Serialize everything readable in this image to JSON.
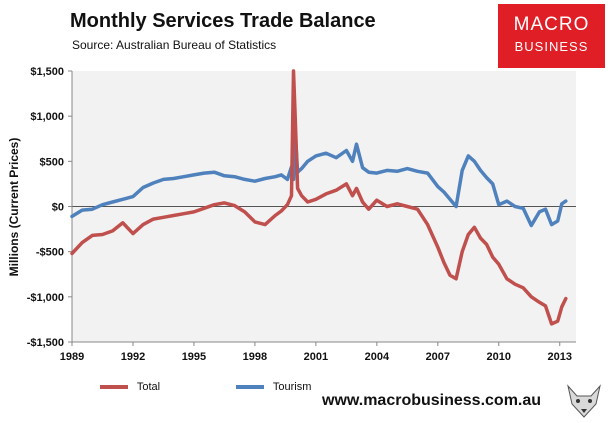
{
  "header": {
    "title": "Monthly Services Trade Balance",
    "subtitle": "Source: Australian Bureau of Statistics"
  },
  "logo": {
    "line1": "MACRO",
    "line2": "BUSINESS",
    "color": "#e01e26"
  },
  "footer": {
    "website": "www.macrobusiness.com.au"
  },
  "chart_data": {
    "type": "line",
    "xlabel": "",
    "ylabel": "Millions (Current Prices)",
    "xlim": [
      1989,
      2013.8
    ],
    "ylim": [
      -1500,
      1500
    ],
    "x_ticks": [
      1989,
      1992,
      1995,
      1998,
      2001,
      2004,
      2007,
      2010,
      2013
    ],
    "x_tick_labels": [
      "1989",
      "1992",
      "1995",
      "1998",
      "2001",
      "2004",
      "2007",
      "2010",
      "2013"
    ],
    "y_ticks": [
      -1500,
      -1000,
      -500,
      0,
      500,
      1000,
      1500
    ],
    "y_tick_labels": [
      "-$1,500",
      "-$1,000",
      "-$500",
      "$0",
      "$500",
      "$1,000",
      "$1,500"
    ],
    "grid": false,
    "legend_position": "bottom-left",
    "series": [
      {
        "name": "Total",
        "color": "#c0504d",
        "x": [
          1989.0,
          1989.5,
          1990.0,
          1990.5,
          1991.0,
          1991.5,
          1992.0,
          1992.5,
          1993.0,
          1993.5,
          1994.0,
          1994.5,
          1995.0,
          1995.5,
          1996.0,
          1996.5,
          1997.0,
          1997.5,
          1998.0,
          1998.5,
          1999.0,
          1999.3,
          1999.6,
          1999.8,
          1999.9,
          2000.0,
          2000.1,
          2000.3,
          2000.6,
          2001.0,
          2001.5,
          2002.0,
          2002.5,
          2002.8,
          2003.0,
          2003.3,
          2003.6,
          2004.0,
          2004.5,
          2005.0,
          2005.5,
          2006.0,
          2006.5,
          2007.0,
          2007.3,
          2007.6,
          2007.9,
          2008.2,
          2008.5,
          2008.8,
          2009.1,
          2009.4,
          2009.7,
          2010.0,
          2010.4,
          2010.8,
          2011.2,
          2011.6,
          2012.0,
          2012.3,
          2012.6,
          2012.9,
          2013.1,
          2013.3
        ],
        "y": [
          -520,
          -400,
          -320,
          -310,
          -270,
          -180,
          -300,
          -200,
          -140,
          -120,
          -100,
          -80,
          -60,
          -20,
          20,
          40,
          10,
          -60,
          -170,
          -200,
          -100,
          -50,
          20,
          120,
          1500,
          900,
          200,
          120,
          50,
          80,
          140,
          180,
          250,
          120,
          200,
          50,
          -30,
          70,
          0,
          30,
          0,
          -30,
          -200,
          -450,
          -620,
          -760,
          -800,
          -500,
          -310,
          -230,
          -350,
          -420,
          -560,
          -640,
          -800,
          -860,
          -900,
          -1000,
          -1060,
          -1100,
          -1300,
          -1270,
          -1110,
          -1020
        ]
      },
      {
        "name": "Tourism",
        "color": "#4f81bd",
        "x": [
          1989.0,
          1989.5,
          1990.0,
          1990.5,
          1991.0,
          1991.5,
          1992.0,
          1992.5,
          1993.0,
          1993.5,
          1994.0,
          1994.5,
          1995.0,
          1995.5,
          1996.0,
          1996.5,
          1997.0,
          1997.5,
          1998.0,
          1998.5,
          1999.0,
          1999.3,
          1999.6,
          1999.8,
          1999.9,
          2000.0,
          2000.1,
          2000.3,
          2000.6,
          2001.0,
          2001.5,
          2002.0,
          2002.5,
          2002.8,
          2003.0,
          2003.3,
          2003.6,
          2004.0,
          2004.5,
          2005.0,
          2005.5,
          2006.0,
          2006.5,
          2007.0,
          2007.3,
          2007.6,
          2007.9,
          2008.2,
          2008.5,
          2008.8,
          2009.1,
          2009.4,
          2009.7,
          2010.0,
          2010.4,
          2010.8,
          2011.2,
          2011.6,
          2012.0,
          2012.3,
          2012.6,
          2012.9,
          2013.1,
          2013.3
        ],
        "y": [
          -110,
          -40,
          -30,
          20,
          50,
          80,
          110,
          210,
          260,
          300,
          310,
          330,
          350,
          370,
          380,
          340,
          330,
          300,
          280,
          310,
          330,
          350,
          300,
          440,
          300,
          780,
          380,
          420,
          500,
          560,
          590,
          540,
          620,
          500,
          690,
          430,
          380,
          370,
          400,
          390,
          420,
          390,
          370,
          220,
          160,
          80,
          0,
          400,
          560,
          500,
          400,
          320,
          250,
          20,
          60,
          0,
          -20,
          -210,
          -60,
          -30,
          -200,
          -160,
          30,
          60
        ]
      }
    ]
  }
}
